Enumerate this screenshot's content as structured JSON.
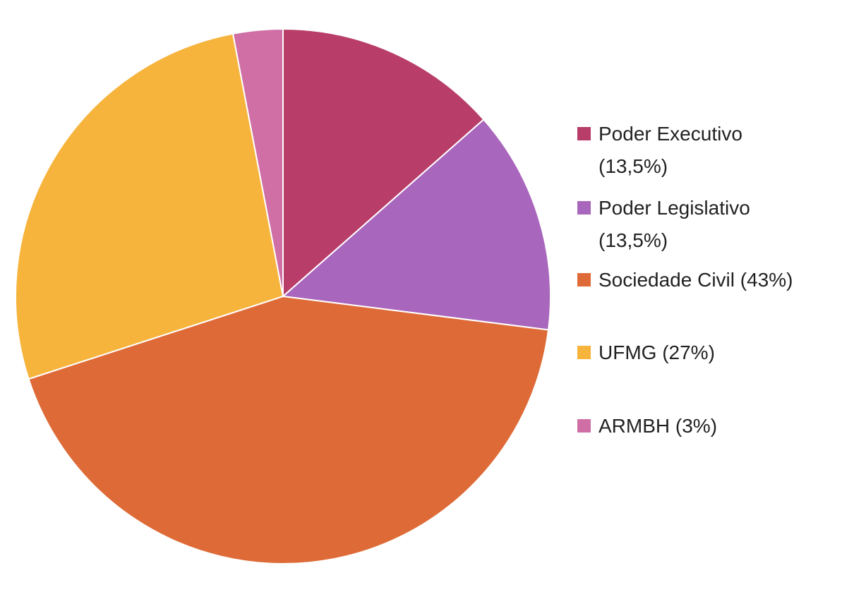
{
  "chart_data": {
    "type": "pie",
    "categories": [
      "Poder Executivo (13,5%)",
      "Poder Legislativo (13,5%)",
      "Sociedade Civil (43%)",
      "UFMG (27%)",
      "ARMBH (3%)"
    ],
    "values": [
      13.5,
      13.5,
      43,
      27,
      3
    ],
    "colors": [
      "#b83d68",
      "#a966bd",
      "#de6b37",
      "#f6b43c",
      "#cf6fa6"
    ],
    "legend": "right"
  }
}
